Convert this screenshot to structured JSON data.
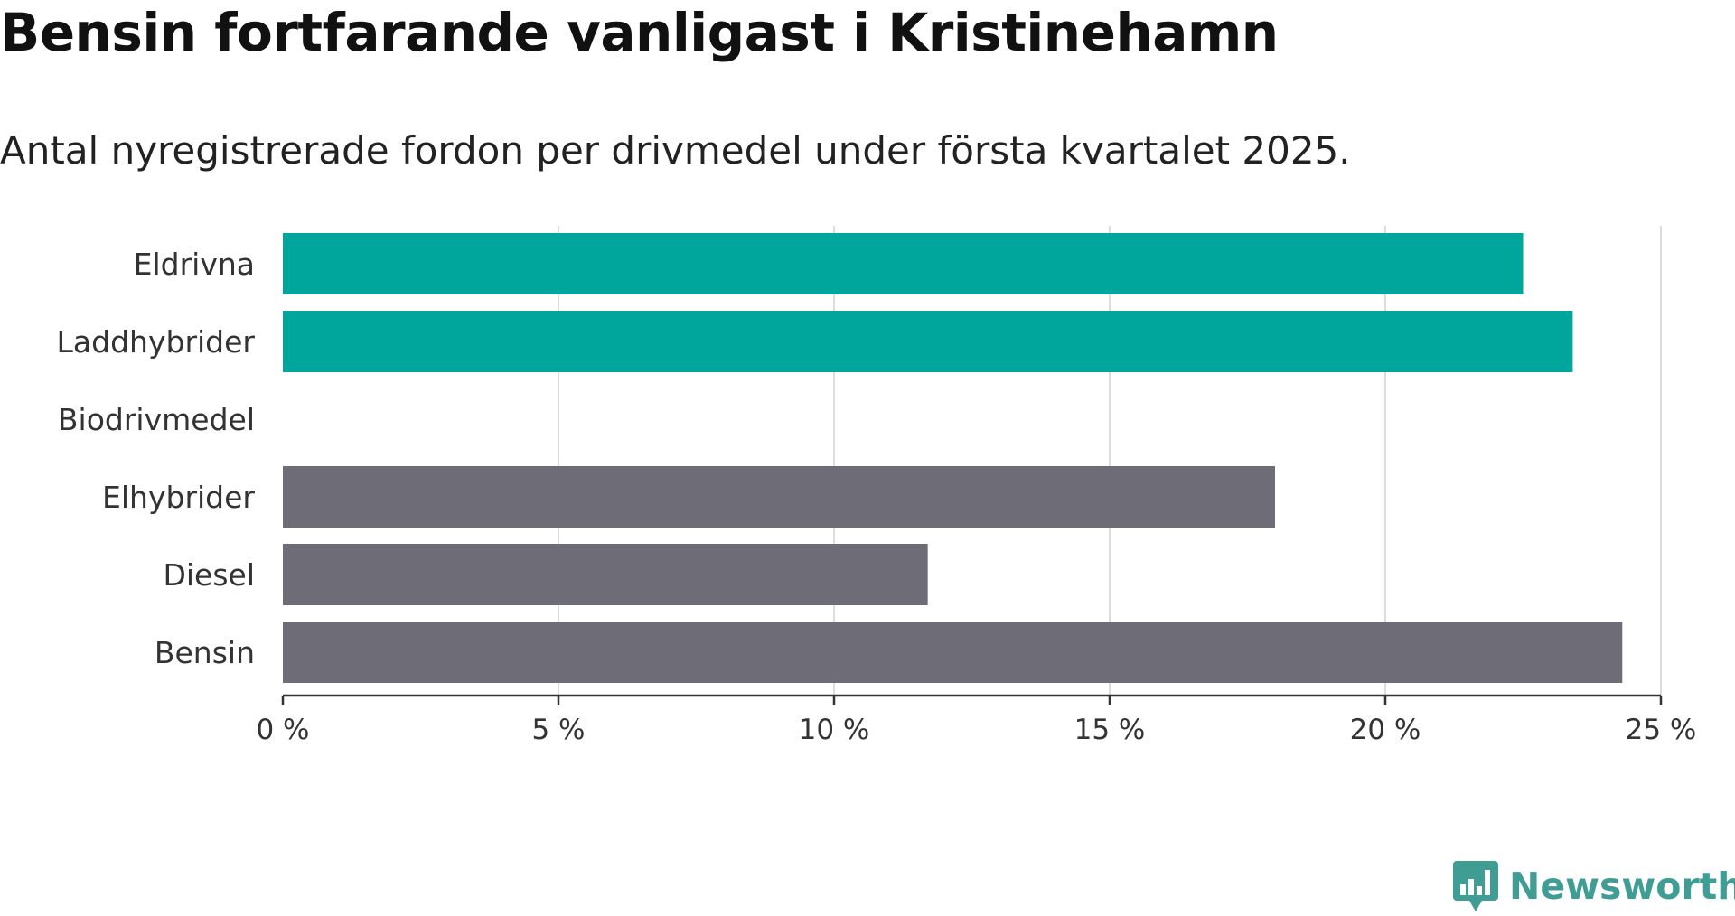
{
  "title": "Bensin fortfarande vanligast i Kristinehamn",
  "subtitle": "Antal nyregistrerade fordon per drivmedel under första kvartalet 2025.",
  "brand": {
    "name": "Newsworthy",
    "color": "#3f9d94",
    "icon": "newsworthy-logo-icon"
  },
  "colors": {
    "highlight": "#00a59b",
    "default": "#6e6d77",
    "grid": "#dddddd",
    "axis": "#333333"
  },
  "chart_data": {
    "type": "bar",
    "orientation": "horizontal",
    "categories": [
      "Eldrivna",
      "Laddhybrider",
      "Biodrivmedel",
      "Elhybrider",
      "Diesel",
      "Bensin"
    ],
    "values": [
      22.5,
      23.4,
      0,
      18.0,
      11.7,
      24.3
    ],
    "highlighted": [
      true,
      true,
      false,
      false,
      false,
      false
    ],
    "xlim": [
      0,
      25
    ],
    "xticks": [
      0,
      5,
      10,
      15,
      20,
      25
    ],
    "xtick_labels": [
      "0 %",
      "5 %",
      "10 %",
      "15 %",
      "20 %",
      "25 %"
    ],
    "grid": true,
    "xlabel": "",
    "ylabel": ""
  }
}
